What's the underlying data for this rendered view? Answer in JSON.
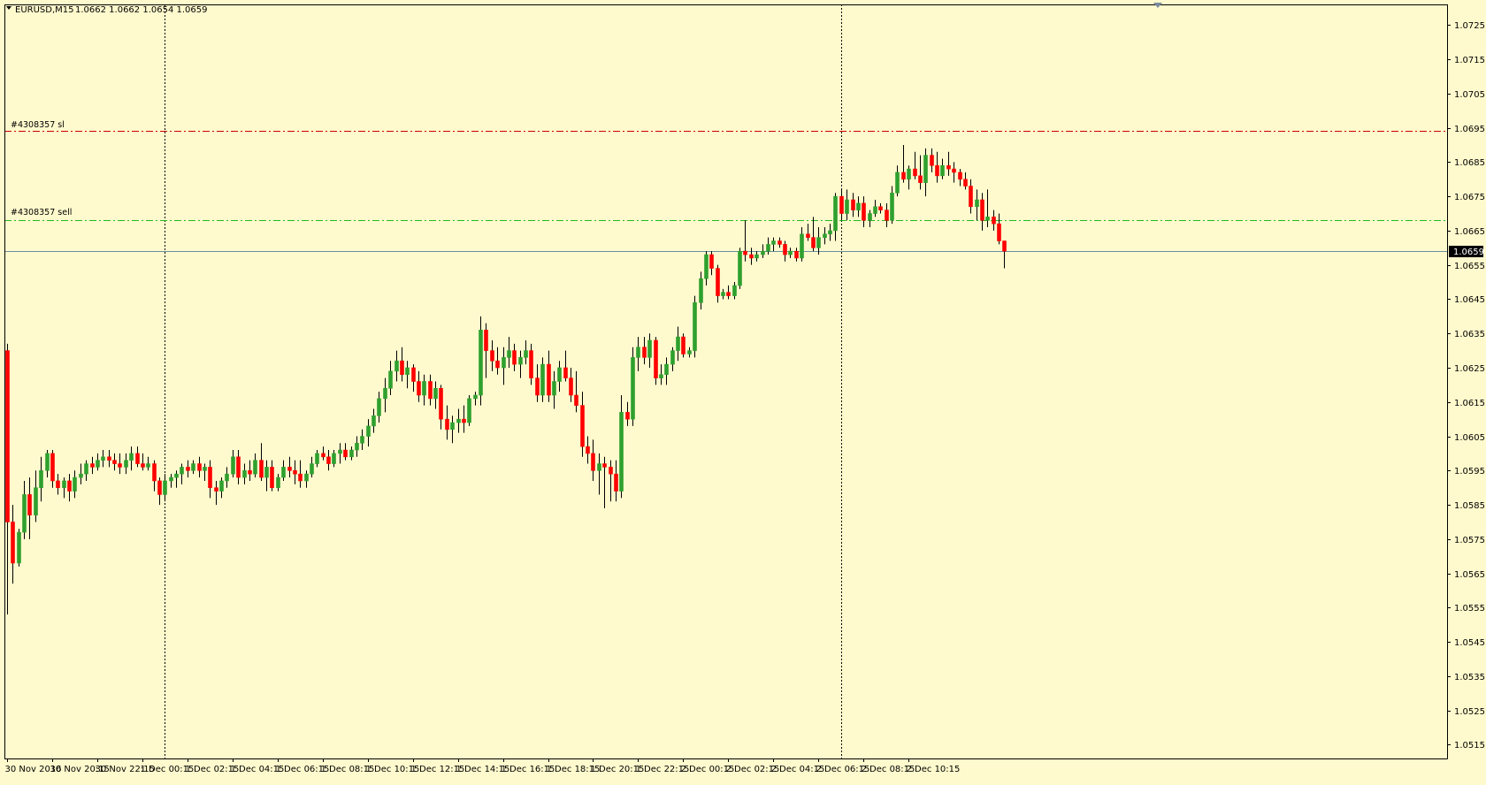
{
  "header": {
    "symbol_timeframe": "EURUSD,M15",
    "ohlc": "1.0662 1.0662 1.0654 1.0659"
  },
  "colors": {
    "background": "#fffacd",
    "frame": "#000000",
    "bull": "#2ea02e",
    "bear": "#ff0000",
    "wick": "#000000",
    "sl_line": "#cc0000",
    "entry_line": "#22bb22",
    "bid_line": "#6a8fa0",
    "price_label_bg": "#000000",
    "price_label_fg": "#ffffff"
  },
  "orders": {
    "sl_label": "#4308357 sl",
    "entry_label": "#4308357 sell"
  },
  "chart_data": {
    "type": "candlestick",
    "symbol": "EURUSD",
    "timeframe": "M15",
    "ylim": [
      1.0511,
      1.0731
    ],
    "y_ticks": [
      "1.0725",
      "1.0715",
      "1.0705",
      "1.0695",
      "1.0685",
      "1.0675",
      "1.0665",
      "1.0655",
      "1.0645",
      "1.0635",
      "1.0625",
      "1.0615",
      "1.0605",
      "1.0595",
      "1.0585",
      "1.0575",
      "1.0565",
      "1.0555",
      "1.0545",
      "1.0535",
      "1.0525",
      "1.0515"
    ],
    "x_labels": [
      "30 Nov 2016",
      "30 Nov 20:15",
      "30 Nov 22:15",
      "1 Dec 00:15",
      "1 Dec 02:15",
      "1 Dec 04:15",
      "1 Dec 06:15",
      "1 Dec 08:15",
      "1 Dec 10:15",
      "1 Dec 12:15",
      "1 Dec 14:15",
      "1 Dec 16:15",
      "1 Dec 18:15",
      "1 Dec 20:15",
      "1 Dec 22:15",
      "2 Dec 00:15",
      "2 Dec 02:15",
      "2 Dec 04:15",
      "2 Dec 06:15",
      "2 Dec 08:15",
      "2 Dec 10:15"
    ],
    "x_label_step_bars": 8,
    "current_price": "1.0659",
    "current_price_value": 1.0659,
    "sl_price": 1.0694,
    "entry_price": 1.0668,
    "vlines_at_bar": [
      28,
      148
    ],
    "candles": [
      [
        1.063,
        1.0632,
        1.0553,
        1.058
      ],
      [
        1.058,
        1.0585,
        1.0562,
        1.0568
      ],
      [
        1.0568,
        1.0578,
        1.0567,
        1.0577
      ],
      [
        1.0577,
        1.0592,
        1.0575,
        1.0588
      ],
      [
        1.0588,
        1.0593,
        1.0575,
        1.0582
      ],
      [
        1.0582,
        1.0595,
        1.058,
        1.059
      ],
      [
        1.059,
        1.0599,
        1.0586,
        1.0595
      ],
      [
        1.0595,
        1.0601,
        1.0593,
        1.06
      ],
      [
        1.06,
        1.0601,
        1.059,
        1.0592
      ],
      [
        1.0592,
        1.0594,
        1.0588,
        1.059
      ],
      [
        1.059,
        1.0593,
        1.0587,
        1.0592
      ],
      [
        1.0592,
        1.0594,
        1.0586,
        1.0589
      ],
      [
        1.0589,
        1.0595,
        1.0587,
        1.0593
      ],
      [
        1.0593,
        1.0597,
        1.0591,
        1.0594
      ],
      [
        1.0594,
        1.0598,
        1.0592,
        1.0597
      ],
      [
        1.0597,
        1.0599,
        1.0594,
        1.0596
      ],
      [
        1.0596,
        1.06,
        1.0595,
        1.0598
      ],
      [
        1.0598,
        1.0601,
        1.0596,
        1.0599
      ],
      [
        1.0599,
        1.0601,
        1.0596,
        1.0598
      ],
      [
        1.0598,
        1.06,
        1.0595,
        1.0597
      ],
      [
        1.0597,
        1.06,
        1.0594,
        1.0596
      ],
      [
        1.0596,
        1.06,
        1.0594,
        1.0598
      ],
      [
        1.0598,
        1.0602,
        1.0595,
        1.06
      ],
      [
        1.06,
        1.0602,
        1.0596,
        1.0597
      ],
      [
        1.0597,
        1.06,
        1.0595,
        1.0596
      ],
      [
        1.0596,
        1.0599,
        1.0595,
        1.0597
      ],
      [
        1.0597,
        1.0598,
        1.0589,
        1.0592
      ],
      [
        1.0592,
        1.0593,
        1.0585,
        1.0588
      ],
      [
        1.0588,
        1.0594,
        1.0586,
        1.0592
      ],
      [
        1.0592,
        1.0594,
        1.059,
        1.0593
      ],
      [
        1.0593,
        1.0595,
        1.059,
        1.0594
      ],
      [
        1.0594,
        1.0597,
        1.0591,
        1.0596
      ],
      [
        1.0596,
        1.0598,
        1.0593,
        1.0595
      ],
      [
        1.0595,
        1.0598,
        1.0594,
        1.0597
      ],
      [
        1.0597,
        1.0599,
        1.0593,
        1.0595
      ],
      [
        1.0595,
        1.0597,
        1.0592,
        1.0596
      ],
      [
        1.0596,
        1.0598,
        1.0587,
        1.059
      ],
      [
        1.059,
        1.0592,
        1.0585,
        1.0589
      ],
      [
        1.0589,
        1.0593,
        1.0587,
        1.0592
      ],
      [
        1.0592,
        1.0596,
        1.059,
        1.0594
      ],
      [
        1.0594,
        1.0601,
        1.0593,
        1.0599
      ],
      [
        1.0599,
        1.0601,
        1.0591,
        1.0593
      ],
      [
        1.0593,
        1.0597,
        1.0591,
        1.0595
      ],
      [
        1.0595,
        1.0598,
        1.0592,
        1.0594
      ],
      [
        1.0594,
        1.06,
        1.0593,
        1.0598
      ],
      [
        1.0598,
        1.0603,
        1.0592,
        1.0593
      ],
      [
        1.0593,
        1.0598,
        1.0589,
        1.0596
      ],
      [
        1.0596,
        1.0598,
        1.0589,
        1.059
      ],
      [
        1.059,
        1.0594,
        1.0589,
        1.0593
      ],
      [
        1.0593,
        1.0598,
        1.0592,
        1.0596
      ],
      [
        1.0596,
        1.0599,
        1.0593,
        1.0595
      ],
      [
        1.0595,
        1.0598,
        1.0591,
        1.0594
      ],
      [
        1.0594,
        1.0598,
        1.059,
        1.0592
      ],
      [
        1.0592,
        1.0595,
        1.059,
        1.0594
      ],
      [
        1.0594,
        1.0599,
        1.0593,
        1.0597
      ],
      [
        1.0597,
        1.0601,
        1.0596,
        1.06
      ],
      [
        1.06,
        1.0602,
        1.0598,
        1.0599
      ],
      [
        1.0599,
        1.0601,
        1.0595,
        1.0597
      ],
      [
        1.0597,
        1.0601,
        1.0596,
        1.06
      ],
      [
        1.06,
        1.0603,
        1.0597,
        1.0601
      ],
      [
        1.0601,
        1.0603,
        1.0598,
        1.0599
      ],
      [
        1.0599,
        1.0602,
        1.0598,
        1.0601
      ],
      [
        1.0601,
        1.0605,
        1.0599,
        1.0603
      ],
      [
        1.0603,
        1.0607,
        1.0601,
        1.0605
      ],
      [
        1.0605,
        1.061,
        1.0602,
        1.0608
      ],
      [
        1.0608,
        1.0613,
        1.0606,
        1.0611
      ],
      [
        1.0611,
        1.0618,
        1.0609,
        1.0616
      ],
      [
        1.0616,
        1.0622,
        1.0612,
        1.0619
      ],
      [
        1.0619,
        1.0627,
        1.0617,
        1.0624
      ],
      [
        1.0624,
        1.063,
        1.0621,
        1.0627
      ],
      [
        1.0627,
        1.0631,
        1.0621,
        1.0623
      ],
      [
        1.0623,
        1.0627,
        1.0619,
        1.0625
      ],
      [
        1.0625,
        1.0626,
        1.0618,
        1.0621
      ],
      [
        1.0621,
        1.0624,
        1.0615,
        1.0617
      ],
      [
        1.0617,
        1.0623,
        1.0614,
        1.0621
      ],
      [
        1.0621,
        1.0623,
        1.0614,
        1.0616
      ],
      [
        1.0616,
        1.0621,
        1.0613,
        1.0619
      ],
      [
        1.0619,
        1.062,
        1.0607,
        1.061
      ],
      [
        1.061,
        1.0614,
        1.0604,
        1.0607
      ],
      [
        1.0607,
        1.0611,
        1.0603,
        1.0609
      ],
      [
        1.0609,
        1.0613,
        1.0606,
        1.061
      ],
      [
        1.061,
        1.0614,
        1.0606,
        1.0609
      ],
      [
        1.0609,
        1.0617,
        1.0608,
        1.0616
      ],
      [
        1.0616,
        1.0618,
        1.0614,
        1.0617
      ],
      [
        1.0617,
        1.064,
        1.0614,
        1.0636
      ],
      [
        1.0636,
        1.0638,
        1.0622,
        1.063
      ],
      [
        1.063,
        1.0633,
        1.0624,
        1.0627
      ],
      [
        1.0627,
        1.0631,
        1.0623,
        1.0625
      ],
      [
        1.0625,
        1.0631,
        1.062,
        1.0628
      ],
      [
        1.0628,
        1.0634,
        1.0625,
        1.063
      ],
      [
        1.063,
        1.0632,
        1.0624,
        1.0626
      ],
      [
        1.0626,
        1.063,
        1.0622,
        1.0628
      ],
      [
        1.0628,
        1.0633,
        1.0626,
        1.063
      ],
      [
        1.063,
        1.0632,
        1.062,
        1.0622
      ],
      [
        1.0622,
        1.0626,
        1.0615,
        1.0617
      ],
      [
        1.0617,
        1.0628,
        1.0615,
        1.0626
      ],
      [
        1.0626,
        1.063,
        1.0615,
        1.0617
      ],
      [
        1.0617,
        1.0624,
        1.0613,
        1.0621
      ],
      [
        1.0621,
        1.0627,
        1.0618,
        1.0625
      ],
      [
        1.0625,
        1.063,
        1.0621,
        1.0622
      ],
      [
        1.0622,
        1.0625,
        1.0615,
        1.0617
      ],
      [
        1.0617,
        1.0624,
        1.0612,
        1.0614
      ],
      [
        1.0614,
        1.0618,
        1.0599,
        1.0602
      ],
      [
        1.0602,
        1.0605,
        1.0597,
        1.06
      ],
      [
        1.06,
        1.0604,
        1.0592,
        1.0595
      ],
      [
        1.0595,
        1.06,
        1.0588,
        1.0597
      ],
      [
        1.0597,
        1.0599,
        1.0584,
        1.0596
      ],
      [
        1.0596,
        1.0598,
        1.0586,
        1.0594
      ],
      [
        1.0594,
        1.0598,
        1.0586,
        1.0589
      ],
      [
        1.0589,
        1.0617,
        1.0587,
        1.0612
      ],
      [
        1.0612,
        1.0615,
        1.0608,
        1.061
      ],
      [
        1.061,
        1.0631,
        1.0608,
        1.0628
      ],
      [
        1.0628,
        1.0634,
        1.0624,
        1.0631
      ],
      [
        1.0631,
        1.0634,
        1.0626,
        1.0628
      ],
      [
        1.0628,
        1.0635,
        1.0625,
        1.0633
      ],
      [
        1.0633,
        1.0634,
        1.062,
        1.0622
      ],
      [
        1.0622,
        1.0626,
        1.062,
        1.0623
      ],
      [
        1.0623,
        1.0628,
        1.062,
        1.0626
      ],
      [
        1.0626,
        1.0631,
        1.0624,
        1.063
      ],
      [
        1.063,
        1.0637,
        1.0627,
        1.0634
      ],
      [
        1.0634,
        1.0635,
        1.0628,
        1.0629
      ],
      [
        1.0629,
        1.0631,
        1.0628,
        1.063
      ],
      [
        1.063,
        1.0646,
        1.0628,
        1.0644
      ],
      [
        1.0644,
        1.0653,
        1.0642,
        1.0651
      ],
      [
        1.0651,
        1.0659,
        1.0649,
        1.0658
      ],
      [
        1.0658,
        1.0659,
        1.0652,
        1.0654
      ],
      [
        1.0654,
        1.0655,
        1.0644,
        1.0646
      ],
      [
        1.0646,
        1.0648,
        1.0645,
        1.0647
      ],
      [
        1.0647,
        1.0649,
        1.0645,
        1.0646
      ],
      [
        1.0646,
        1.065,
        1.0645,
        1.0649
      ],
      [
        1.0649,
        1.066,
        1.0648,
        1.0659
      ],
      [
        1.0659,
        1.0668,
        1.0656,
        1.0658
      ],
      [
        1.0658,
        1.066,
        1.0655,
        1.0657
      ],
      [
        1.0657,
        1.0659,
        1.0656,
        1.0658
      ],
      [
        1.0658,
        1.0661,
        1.0657,
        1.0659
      ],
      [
        1.0659,
        1.0663,
        1.0658,
        1.0661
      ],
      [
        1.0661,
        1.0663,
        1.0659,
        1.0662
      ],
      [
        1.0662,
        1.0663,
        1.066,
        1.0661
      ],
      [
        1.0661,
        1.0662,
        1.0656,
        1.0658
      ],
      [
        1.0658,
        1.066,
        1.0657,
        1.0659
      ],
      [
        1.0659,
        1.066,
        1.0656,
        1.0657
      ],
      [
        1.0657,
        1.0666,
        1.0656,
        1.0664
      ],
      [
        1.0664,
        1.0667,
        1.0662,
        1.0663
      ],
      [
        1.0663,
        1.0669,
        1.0659,
        1.066
      ],
      [
        1.066,
        1.0666,
        1.0658,
        1.0663
      ],
      [
        1.0663,
        1.0666,
        1.0661,
        1.0664
      ],
      [
        1.0664,
        1.0667,
        1.0662,
        1.0665
      ],
      [
        1.0665,
        1.0676,
        1.0662,
        1.0675
      ],
      [
        1.0675,
        1.0677,
        1.0668,
        1.067
      ],
      [
        1.067,
        1.0677,
        1.0668,
        1.0674
      ],
      [
        1.0674,
        1.0676,
        1.0669,
        1.0671
      ],
      [
        1.0671,
        1.0675,
        1.0669,
        1.0673
      ],
      [
        1.0673,
        1.0675,
        1.0666,
        1.0668
      ],
      [
        1.0668,
        1.0671,
        1.0666,
        1.067
      ],
      [
        1.067,
        1.0674,
        1.0669,
        1.0672
      ],
      [
        1.0672,
        1.0673,
        1.067,
        1.0671
      ],
      [
        1.0671,
        1.0673,
        1.0666,
        1.0668
      ],
      [
        1.0668,
        1.0678,
        1.0667,
        1.0676
      ],
      [
        1.0676,
        1.0684,
        1.0675,
        1.0682
      ],
      [
        1.0682,
        1.069,
        1.0679,
        1.068
      ],
      [
        1.068,
        1.0684,
        1.0677,
        1.0683
      ],
      [
        1.0683,
        1.0688,
        1.068,
        1.0681
      ],
      [
        1.0681,
        1.0687,
        1.0677,
        1.0679
      ],
      [
        1.0679,
        1.0689,
        1.0675,
        1.0687
      ],
      [
        1.0687,
        1.0689,
        1.0682,
        1.0684
      ],
      [
        1.0684,
        1.0688,
        1.0679,
        1.0681
      ],
      [
        1.0681,
        1.0686,
        1.068,
        1.0684
      ],
      [
        1.0684,
        1.0688,
        1.0681,
        1.0683
      ],
      [
        1.0683,
        1.0685,
        1.0679,
        1.0682
      ],
      [
        1.0682,
        1.0683,
        1.0678,
        1.068
      ],
      [
        1.068,
        1.0682,
        1.0677,
        1.0678
      ],
      [
        1.0678,
        1.068,
        1.067,
        1.0672
      ],
      [
        1.0672,
        1.0677,
        1.0668,
        1.0674
      ],
      [
        1.0674,
        1.0676,
        1.0665,
        1.0668
      ],
      [
        1.0668,
        1.0677,
        1.0666,
        1.0669
      ],
      [
        1.0669,
        1.0671,
        1.0665,
        1.0667
      ],
      [
        1.0667,
        1.067,
        1.0661,
        1.0662
      ],
      [
        1.0662,
        1.0662,
        1.0654,
        1.0659
      ]
    ]
  }
}
